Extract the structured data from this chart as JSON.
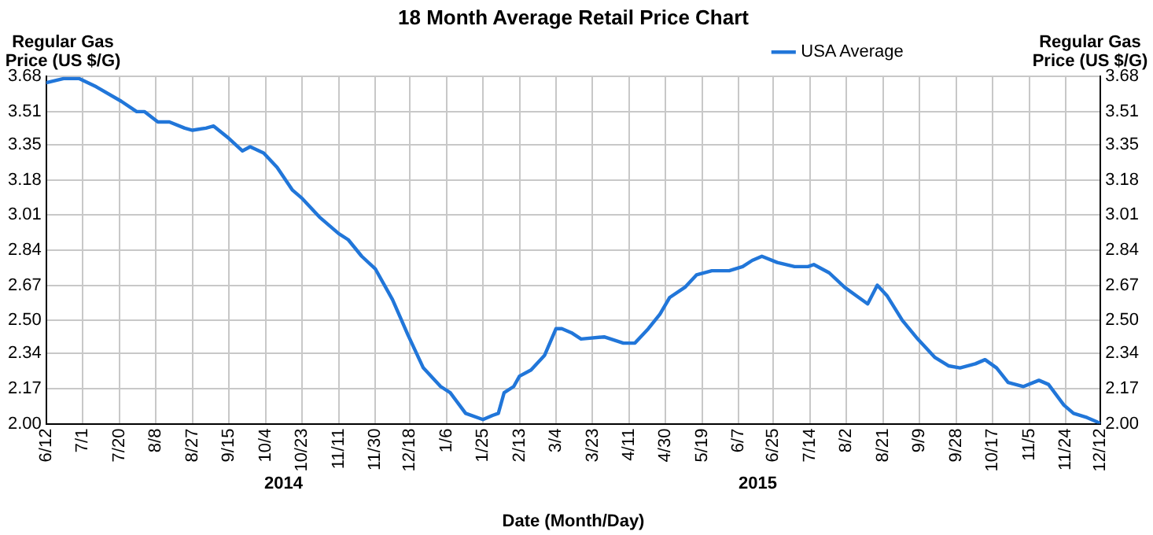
{
  "chart_data": {
    "type": "line",
    "title": "18 Month Average Retail Price Chart",
    "ylabel": "Regular Gas Price (US $/G)",
    "y2label": "Regular Gas Price (US $/G)",
    "xlabel": "Date (Month/Day)",
    "annotations": [
      "2014",
      "2015"
    ],
    "x": [
      "2014-06-12",
      "2014-06-21",
      "2014-06-29",
      "2014-07-08",
      "2014-07-21",
      "2014-07-29",
      "2014-08-02",
      "2014-08-09",
      "2014-08-15",
      "2014-08-23",
      "2014-08-27",
      "2014-09-03",
      "2014-09-07",
      "2014-09-15",
      "2014-09-22",
      "2014-09-26",
      "2014-10-03",
      "2014-10-10",
      "2014-10-18",
      "2014-10-23",
      "2014-11-01",
      "2014-11-11",
      "2014-11-16",
      "2014-11-23",
      "2014-11-30",
      "2014-12-09",
      "2014-12-17",
      "2014-12-25",
      "2015-01-03",
      "2015-01-08",
      "2015-01-16",
      "2015-01-25",
      "2015-01-30",
      "2015-02-02",
      "2015-02-05",
      "2015-02-10",
      "2015-02-13",
      "2015-02-19",
      "2015-02-26",
      "2015-03-04",
      "2015-03-07",
      "2015-03-12",
      "2015-03-17",
      "2015-03-29",
      "2015-04-08",
      "2015-04-14",
      "2015-04-21",
      "2015-04-27",
      "2015-05-02",
      "2015-05-10",
      "2015-05-16",
      "2015-05-24",
      "2015-06-02",
      "2015-06-09",
      "2015-06-14",
      "2015-06-19",
      "2015-06-27",
      "2015-07-06",
      "2015-07-13",
      "2015-07-16",
      "2015-07-24",
      "2015-08-01",
      "2015-08-07",
      "2015-08-13",
      "2015-08-18",
      "2015-08-23",
      "2015-08-31",
      "2015-09-08",
      "2015-09-17",
      "2015-09-24",
      "2015-09-30",
      "2015-10-08",
      "2015-10-13",
      "2015-10-19",
      "2015-10-25",
      "2015-11-02",
      "2015-11-10",
      "2015-11-15",
      "2015-11-23",
      "2015-11-28",
      "2015-12-05",
      "2015-12-10",
      "2015-12-12"
    ],
    "series": [
      {
        "name": "USA Average",
        "color": "#2176d9",
        "values": [
          3.65,
          3.67,
          3.67,
          3.63,
          3.56,
          3.51,
          3.51,
          3.46,
          3.46,
          3.43,
          3.42,
          3.43,
          3.44,
          3.38,
          3.32,
          3.34,
          3.31,
          3.24,
          3.13,
          3.09,
          3.0,
          2.92,
          2.89,
          2.81,
          2.75,
          2.6,
          2.43,
          2.27,
          2.18,
          2.15,
          2.05,
          2.02,
          2.04,
          2.05,
          2.15,
          2.18,
          2.23,
          2.26,
          2.33,
          2.46,
          2.46,
          2.44,
          2.41,
          2.42,
          2.39,
          2.39,
          2.46,
          2.53,
          2.61,
          2.66,
          2.72,
          2.74,
          2.74,
          2.76,
          2.79,
          2.81,
          2.78,
          2.76,
          2.76,
          2.77,
          2.73,
          2.66,
          2.62,
          2.58,
          2.67,
          2.62,
          2.5,
          2.41,
          2.32,
          2.28,
          2.27,
          2.29,
          2.31,
          2.27,
          2.2,
          2.18,
          2.21,
          2.19,
          2.09,
          2.05,
          2.03,
          2.01,
          2.0
        ]
      }
    ],
    "xlim": [
      "2014-06-12",
      "2015-12-12"
    ],
    "xticks": [
      {
        "value": "2014-06-12",
        "label": "6/12"
      },
      {
        "value": "2014-07-01",
        "label": "7/1"
      },
      {
        "value": "2014-07-20",
        "label": "7/20"
      },
      {
        "value": "2014-08-08",
        "label": "8/8"
      },
      {
        "value": "2014-08-27",
        "label": "8/27"
      },
      {
        "value": "2014-09-15",
        "label": "9/15"
      },
      {
        "value": "2014-10-04",
        "label": "10/4"
      },
      {
        "value": "2014-10-23",
        "label": "10/23"
      },
      {
        "value": "2014-11-11",
        "label": "11/11"
      },
      {
        "value": "2014-11-30",
        "label": "11/30"
      },
      {
        "value": "2014-12-18",
        "label": "12/18"
      },
      {
        "value": "2015-01-06",
        "label": "1/6"
      },
      {
        "value": "2015-01-25",
        "label": "1/25"
      },
      {
        "value": "2015-02-13",
        "label": "2/13"
      },
      {
        "value": "2015-03-04",
        "label": "3/4"
      },
      {
        "value": "2015-03-23",
        "label": "3/23"
      },
      {
        "value": "2015-04-11",
        "label": "4/11"
      },
      {
        "value": "2015-04-30",
        "label": "4/30"
      },
      {
        "value": "2015-05-19",
        "label": "5/19"
      },
      {
        "value": "2015-06-07",
        "label": "6/7"
      },
      {
        "value": "2015-06-25",
        "label": "6/25"
      },
      {
        "value": "2015-07-14",
        "label": "7/14"
      },
      {
        "value": "2015-08-02",
        "label": "8/2"
      },
      {
        "value": "2015-08-21",
        "label": "8/21"
      },
      {
        "value": "2015-09-09",
        "label": "9/9"
      },
      {
        "value": "2015-09-28",
        "label": "9/28"
      },
      {
        "value": "2015-10-17",
        "label": "10/17"
      },
      {
        "value": "2015-11-05",
        "label": "11/5"
      },
      {
        "value": "2015-11-24",
        "label": "11/24"
      },
      {
        "value": "2015-12-12",
        "label": "12/12"
      }
    ],
    "ylim": [
      2.0,
      3.68
    ],
    "yticks": [
      {
        "value": 2,
        "label": "2.00"
      },
      2.17,
      2.34,
      {
        "value": 2.5,
        "label": "2.50"
      },
      2.67,
      2.84,
      3.01,
      3.18,
      3.35,
      3.51,
      3.68
    ],
    "y2lim": [
      2.0,
      3.68
    ],
    "y2ticks": [
      {
        "value": 2,
        "label": "2.00"
      },
      2.17,
      2.34,
      {
        "value": 2.5,
        "label": "2.50"
      },
      2.67,
      2.84,
      3.01,
      3.18,
      3.35,
      3.51,
      3.68
    ],
    "grid": true,
    "legend": "top right",
    "marker": "none",
    "line_style": "solid"
  }
}
